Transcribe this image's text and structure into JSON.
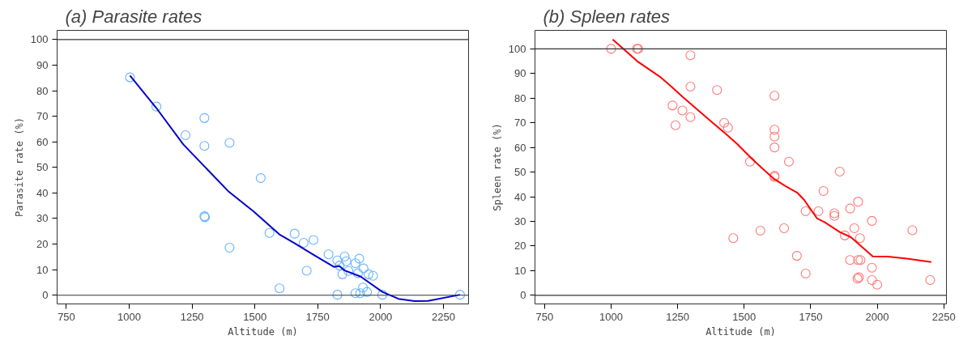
{
  "chart_data": [
    {
      "type": "scatter",
      "title": "(a) Parasite rates",
      "xlabel": "Altitude (m)",
      "ylabel": "Parasite rate (%)",
      "xlim": [
        713,
        2350
      ],
      "ylim": [
        -3.4,
        103.6
      ],
      "xticks": [
        750,
        1000,
        1250,
        1500,
        1750,
        2000,
        2250
      ],
      "yticks": [
        0,
        10,
        20,
        30,
        40,
        50,
        60,
        70,
        80,
        90,
        100
      ],
      "grid": false,
      "ref_lines": [
        {
          "axis": "y",
          "value": 0,
          "color": "#333333"
        },
        {
          "axis": "y",
          "value": 100,
          "color": "#333333"
        }
      ],
      "series": [
        {
          "marker": "circle",
          "color": "#66b2ff",
          "x": [
            1003,
            1108,
            1224,
            1299,
            1299,
            1299,
            1301,
            1399,
            1399,
            1523,
            1558,
            1598,
            1658,
            1694,
            1733,
            1706,
            1793,
            1828,
            1828,
            1857,
            1864,
            1837,
            1848,
            1872,
            1900,
            1915,
            1910,
            1932,
            1900,
            1919,
            1930,
            1946,
            1952,
            1970,
            2007,
            2316
          ],
          "values": [
            85.2,
            73.8,
            62.6,
            69.3,
            58.4,
            30.9,
            30.5,
            59.6,
            18.6,
            45.8,
            24.4,
            2.7,
            24.1,
            20.5,
            21.6,
            9.6,
            16,
            0.2,
            13.6,
            15.1,
            13.3,
            11.6,
            8.2,
            9.5,
            12.5,
            14.3,
            8.6,
            10.5,
            0.8,
            0.8,
            3,
            1.3,
            8.2,
            7.6,
            0.2,
            0.2
          ]
        },
        {
          "type": "line",
          "marker": "none",
          "color": "#0000cc",
          "x": [
            1003,
            1108,
            1215,
            1300,
            1396,
            1493,
            1600,
            1653,
            1739,
            1814,
            1836,
            1857,
            1921,
            2007,
            2071,
            2136,
            2189,
            2316
          ],
          "values": [
            85.9,
            73.2,
            59,
            50.3,
            40.5,
            32.9,
            23.6,
            20.6,
            15.5,
            11.1,
            11.4,
            9.7,
            7.3,
            1.3,
            -1.4,
            -2.3,
            -2.2,
            0.2
          ]
        }
      ]
    },
    {
      "type": "scatter",
      "title": "(b) Spleen rates",
      "xlabel": "Altitude (m)",
      "ylabel": "Spleen rate (%)",
      "xlim": [
        714,
        2260
      ],
      "ylim": [
        -3.5,
        107.5
      ],
      "xticks": [
        750,
        1000,
        1250,
        1500,
        1750,
        2000,
        2250
      ],
      "yticks": [
        0,
        10,
        20,
        30,
        40,
        50,
        60,
        70,
        80,
        90,
        100
      ],
      "grid": false,
      "ref_lines": [
        {
          "axis": "y",
          "value": 0,
          "color": "#333333"
        },
        {
          "axis": "y",
          "value": 100,
          "color": "#333333"
        }
      ],
      "series": [
        {
          "marker": "circle",
          "color": "#ff7777",
          "x": [
            1000,
            1097,
            1102,
            1298,
            1298,
            1398,
            1614,
            1231,
            1268,
            1298,
            1242,
            1425,
            1439,
            1614,
            1614,
            1614,
            1522,
            1668,
            1614,
            1614,
            1859,
            1798,
            1731,
            1779,
            1839,
            1839,
            1928,
            1898,
            1980,
            1914,
            1878,
            1935,
            1650,
            1561,
            1459,
            2132,
            1698,
            1898,
            1928,
            1937,
            1731,
            1980,
            1926,
            1931,
            1980,
            2000,
            2199
          ],
          "values": [
            100,
            100,
            100,
            97.4,
            84.7,
            83.3,
            81,
            77,
            75,
            72.3,
            69,
            70,
            68,
            67.2,
            64.4,
            60,
            54.2,
            54.2,
            48.5,
            48,
            50.2,
            42.3,
            34.1,
            34.1,
            33.3,
            32.2,
            38,
            35.2,
            30.2,
            27.2,
            24.3,
            23.2,
            27.2,
            26.2,
            23.2,
            26.4,
            16,
            14.3,
            14.3,
            14.3,
            8.8,
            11.2,
            6.8,
            7.3,
            6.2,
            4.3,
            6.2
          ]
        },
        {
          "type": "line",
          "marker": "none",
          "color": "#ff0000",
          "x": [
            1006,
            1098,
            1187,
            1229,
            1270,
            1373,
            1434,
            1475,
            1527,
            1578,
            1614,
            1655,
            1701,
            1726,
            1773,
            1803,
            1860,
            1901,
            1932,
            1983,
            2039,
            2111,
            2203
          ],
          "values": [
            103.8,
            95,
            88.4,
            84.4,
            80.4,
            70.8,
            65.2,
            61.3,
            55.6,
            50.5,
            47.1,
            44.3,
            41.5,
            38.6,
            31.3,
            29.6,
            25.6,
            23.6,
            20.6,
            15.8,
            15.7,
            14.9,
            13.5
          ]
        }
      ]
    }
  ]
}
